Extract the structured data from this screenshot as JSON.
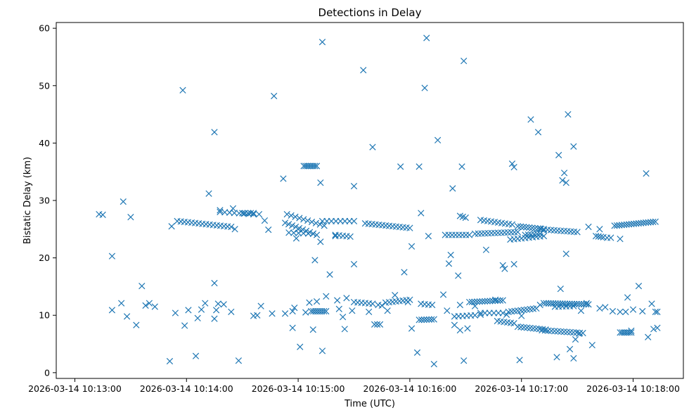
{
  "chart_data": {
    "type": "scatter",
    "title": "Detections in Delay",
    "xlabel": "Time (UTC)",
    "ylabel": "Bistatic Delay (km)",
    "marker": "x",
    "color": "#1f77b4",
    "grid": false,
    "x_unit": "time",
    "xlim": [
      "2026-03-14 10:12:50",
      "2026-03-14 10:18:27"
    ],
    "ylim": [
      -1,
      61
    ],
    "x_ticks": [
      "2026-03-14 10:13:00",
      "2026-03-14 10:14:00",
      "2026-03-14 10:15:00",
      "2026-03-14 10:16:00",
      "2026-03-14 10:17:00",
      "2026-03-14 10:18:00"
    ],
    "y_ticks": [
      0,
      10,
      20,
      30,
      40,
      50,
      60
    ],
    "points": [
      [
        "2026-03-14 10:13:13",
        27.6
      ],
      [
        "2026-03-14 10:13:15",
        27.5
      ],
      [
        "2026-03-14 10:13:20",
        20.3
      ],
      [
        "2026-03-14 10:13:20",
        10.9
      ],
      [
        "2026-03-14 10:13:25",
        12.1
      ],
      [
        "2026-03-14 10:13:26",
        29.8
      ],
      [
        "2026-03-14 10:13:28",
        9.8
      ],
      [
        "2026-03-14 10:13:30",
        27.1
      ],
      [
        "2026-03-14 10:13:33",
        8.3
      ],
      [
        "2026-03-14 10:13:36",
        15.1
      ],
      [
        "2026-03-14 10:13:38",
        11.7
      ],
      [
        "2026-03-14 10:13:40",
        12.1
      ],
      [
        "2026-03-14 10:13:43",
        11.5
      ],
      [
        "2026-03-14 10:13:51",
        2.0
      ],
      [
        "2026-03-14 10:13:52",
        25.5
      ],
      [
        "2026-03-14 10:13:54",
        10.4
      ],
      [
        "2026-03-14 10:13:58",
        49.2
      ],
      [
        "2026-03-14 10:13:59",
        8.2
      ],
      [
        "2026-03-14 10:14:01",
        10.9
      ],
      [
        "2026-03-14 10:14:05",
        2.9
      ],
      [
        "2026-03-14 10:14:06",
        9.5
      ],
      [
        "2026-03-14 10:14:08",
        11.0
      ],
      [
        "2026-03-14 10:14:10",
        12.1
      ],
      [
        "2026-03-14 10:14:12",
        31.2
      ],
      [
        "2026-03-14 10:14:15",
        41.9
      ],
      [
        "2026-03-14 10:14:15",
        15.6
      ],
      [
        "2026-03-14 10:14:15",
        9.4
      ],
      [
        "2026-03-14 10:14:16",
        10.9
      ],
      [
        "2026-03-14 10:14:17",
        12.0
      ],
      [
        "2026-03-14 10:14:18",
        28.3
      ],
      [
        "2026-03-14 10:14:20",
        11.9
      ],
      [
        "2026-03-14 10:14:24",
        10.6
      ],
      [
        "2026-03-14 10:14:25",
        28.6
      ],
      [
        "2026-03-14 10:14:26",
        25.0
      ],
      [
        "2026-03-14 10:14:28",
        2.1
      ],
      [
        "2026-03-14 10:14:36",
        9.9
      ],
      [
        "2026-03-14 10:14:38",
        10.0
      ],
      [
        "2026-03-14 10:14:39",
        27.6
      ],
      [
        "2026-03-14 10:14:40",
        11.6
      ],
      [
        "2026-03-14 10:14:42",
        26.5
      ],
      [
        "2026-03-14 10:14:44",
        24.9
      ],
      [
        "2026-03-14 10:14:46",
        10.3
      ],
      [
        "2026-03-14 10:14:47",
        48.2
      ],
      [
        "2026-03-14 10:14:52",
        33.8
      ],
      [
        "2026-03-14 10:14:53",
        10.3
      ],
      [
        "2026-03-14 10:14:57",
        10.7
      ],
      [
        "2026-03-14 10:14:57",
        7.8
      ],
      [
        "2026-03-14 10:14:58",
        11.3
      ],
      [
        "2026-03-14 10:14:59",
        23.4
      ],
      [
        "2026-03-14 10:15:00",
        25.0
      ],
      [
        "2026-03-14 10:15:01",
        4.5
      ],
      [
        "2026-03-14 10:15:04",
        10.5
      ],
      [
        "2026-03-14 10:15:06",
        12.2
      ],
      [
        "2026-03-14 10:15:08",
        7.5
      ],
      [
        "2026-03-14 10:15:09",
        19.6
      ],
      [
        "2026-03-14 10:15:10",
        12.4
      ],
      [
        "2026-03-14 10:15:12",
        33.1
      ],
      [
        "2026-03-14 10:15:12",
        22.8
      ],
      [
        "2026-03-14 10:15:13",
        3.8
      ],
      [
        "2026-03-14 10:15:13",
        57.6
      ],
      [
        "2026-03-14 10:15:15",
        13.3
      ],
      [
        "2026-03-14 10:15:17",
        17.1
      ],
      [
        "2026-03-14 10:15:20",
        23.8
      ],
      [
        "2026-03-14 10:15:21",
        12.6
      ],
      [
        "2026-03-14 10:15:22",
        11.1
      ],
      [
        "2026-03-14 10:15:24",
        9.7
      ],
      [
        "2026-03-14 10:15:25",
        7.6
      ],
      [
        "2026-03-14 10:15:26",
        13.0
      ],
      [
        "2026-03-14 10:15:29",
        10.8
      ],
      [
        "2026-03-14 10:15:30",
        32.5
      ],
      [
        "2026-03-14 10:15:30",
        18.9
      ],
      [
        "2026-03-14 10:15:35",
        52.7
      ],
      [
        "2026-03-14 10:15:38",
        10.6
      ],
      [
        "2026-03-14 10:15:40",
        39.3
      ],
      [
        "2026-03-14 10:15:43",
        11.8
      ],
      [
        "2026-03-14 10:15:45",
        11.7
      ],
      [
        "2026-03-14 10:15:48",
        10.8
      ],
      [
        "2026-03-14 10:15:52",
        13.5
      ],
      [
        "2026-03-14 10:15:55",
        35.9
      ],
      [
        "2026-03-14 10:15:57",
        17.5
      ],
      [
        "2026-03-14 10:15:59",
        12.3
      ],
      [
        "2026-03-14 10:16:01",
        22.0
      ],
      [
        "2026-03-14 10:16:01",
        7.7
      ],
      [
        "2026-03-14 10:16:04",
        3.5
      ],
      [
        "2026-03-14 10:16:05",
        35.9
      ],
      [
        "2026-03-14 10:16:06",
        27.8
      ],
      [
        "2026-03-14 10:16:08",
        49.6
      ],
      [
        "2026-03-14 10:16:09",
        58.3
      ],
      [
        "2026-03-14 10:16:10",
        23.8
      ],
      [
        "2026-03-14 10:16:13",
        1.5
      ],
      [
        "2026-03-14 10:16:15",
        40.5
      ],
      [
        "2026-03-14 10:16:18",
        13.6
      ],
      [
        "2026-03-14 10:16:20",
        10.8
      ],
      [
        "2026-03-14 10:16:21",
        19.0
      ],
      [
        "2026-03-14 10:16:22",
        20.5
      ],
      [
        "2026-03-14 10:16:23",
        32.1
      ],
      [
        "2026-03-14 10:16:24",
        8.3
      ],
      [
        "2026-03-14 10:16:26",
        16.9
      ],
      [
        "2026-03-14 10:16:27",
        7.4
      ],
      [
        "2026-03-14 10:16:27",
        11.8
      ],
      [
        "2026-03-14 10:16:28",
        35.9
      ],
      [
        "2026-03-14 10:16:29",
        2.1
      ],
      [
        "2026-03-14 10:16:29",
        54.3
      ],
      [
        "2026-03-14 10:16:31",
        7.7
      ],
      [
        "2026-03-14 10:16:35",
        11.6
      ],
      [
        "2026-03-14 10:16:38",
        10.1
      ],
      [
        "2026-03-14 10:16:41",
        21.4
      ],
      [
        "2026-03-14 10:16:46",
        12.7
      ],
      [
        "2026-03-14 10:16:50",
        18.7
      ],
      [
        "2026-03-14 10:16:51",
        18.1
      ],
      [
        "2026-03-14 10:16:52",
        10.1
      ],
      [
        "2026-03-14 10:16:55",
        36.4
      ],
      [
        "2026-03-14 10:16:56",
        35.8
      ],
      [
        "2026-03-14 10:16:56",
        18.9
      ],
      [
        "2026-03-14 10:16:59",
        2.2
      ],
      [
        "2026-03-14 10:17:00",
        9.9
      ],
      [
        "2026-03-14 10:17:05",
        44.1
      ],
      [
        "2026-03-14 10:17:09",
        41.9
      ],
      [
        "2026-03-14 10:17:10",
        11.8
      ],
      [
        "2026-03-14 10:17:10",
        25.1
      ],
      [
        "2026-03-14 10:17:12",
        24.8
      ],
      [
        "2026-03-14 10:17:19",
        2.7
      ],
      [
        "2026-03-14 10:17:20",
        37.9
      ],
      [
        "2026-03-14 10:17:21",
        14.6
      ],
      [
        "2026-03-14 10:17:22",
        33.5
      ],
      [
        "2026-03-14 10:17:23",
        34.8
      ],
      [
        "2026-03-14 10:17:24",
        20.7
      ],
      [
        "2026-03-14 10:17:24",
        33.1
      ],
      [
        "2026-03-14 10:17:25",
        45.0
      ],
      [
        "2026-03-14 10:17:26",
        4.1
      ],
      [
        "2026-03-14 10:17:28",
        39.4
      ],
      [
        "2026-03-14 10:17:28",
        2.5
      ],
      [
        "2026-03-14 10:17:29",
        5.8
      ],
      [
        "2026-03-14 10:17:31",
        6.8
      ],
      [
        "2026-03-14 10:17:32",
        10.8
      ],
      [
        "2026-03-14 10:17:35",
        12.1
      ],
      [
        "2026-03-14 10:17:36",
        25.4
      ],
      [
        "2026-03-14 10:17:38",
        4.8
      ],
      [
        "2026-03-14 10:17:42",
        25.0
      ],
      [
        "2026-03-14 10:17:42",
        11.2
      ],
      [
        "2026-03-14 10:17:45",
        11.4
      ],
      [
        "2026-03-14 10:17:49",
        10.7
      ],
      [
        "2026-03-14 10:17:53",
        10.6
      ],
      [
        "2026-03-14 10:17:53",
        23.3
      ],
      [
        "2026-03-14 10:17:56",
        10.6
      ],
      [
        "2026-03-14 10:17:57",
        13.1
      ],
      [
        "2026-03-14 10:17:59",
        7.3
      ],
      [
        "2026-03-14 10:18:00",
        11.0
      ],
      [
        "2026-03-14 10:18:03",
        15.1
      ],
      [
        "2026-03-14 10:18:05",
        10.7
      ],
      [
        "2026-03-14 10:18:07",
        34.7
      ],
      [
        "2026-03-14 10:18:08",
        6.2
      ],
      [
        "2026-03-14 10:18:10",
        12.0
      ],
      [
        "2026-03-14 10:18:11",
        7.6
      ],
      [
        "2026-03-14 10:18:12",
        10.6
      ],
      [
        "2026-03-14 10:18:13",
        7.8
      ],
      [
        "2026-03-14 10:18:13",
        10.6
      ]
    ],
    "clusters": [
      [
        "2026-03-14 10:13:55",
        "2026-03-14 10:14:24",
        26.4,
        25.4,
        16
      ],
      [
        "2026-03-14 10:14:18",
        "2026-03-14 10:14:36",
        28.0,
        27.6,
        8
      ],
      [
        "2026-03-14 10:14:30",
        "2026-03-14 10:14:36",
        27.8,
        27.8,
        5
      ],
      [
        "2026-03-14 10:14:54",
        "2026-03-14 10:15:14",
        27.6,
        25.6,
        10
      ],
      [
        "2026-03-14 10:14:53",
        "2026-03-14 10:15:10",
        26.1,
        24.0,
        10
      ],
      [
        "2026-03-14 10:14:55",
        "2026-03-14 10:15:08",
        24.4,
        24.2,
        6
      ],
      [
        "2026-03-14 10:15:03",
        "2026-03-14 10:15:10",
        36.0,
        36.0,
        8
      ],
      [
        "2026-03-14 10:15:13",
        "2026-03-14 10:15:30",
        26.4,
        26.4,
        8
      ],
      [
        "2026-03-14 10:15:20",
        "2026-03-14 10:15:28",
        24.0,
        23.7,
        5
      ],
      [
        "2026-03-14 10:15:36",
        "2026-03-14 10:16:00",
        26.0,
        25.2,
        14
      ],
      [
        "2026-03-14 10:15:07",
        "2026-03-14 10:15:15",
        10.7,
        10.7,
        8
      ],
      [
        "2026-03-14 10:15:30",
        "2026-03-14 10:15:40",
        12.3,
        12.0,
        6
      ],
      [
        "2026-03-14 10:15:47",
        "2026-03-14 10:16:00",
        12.2,
        12.7,
        8
      ],
      [
        "2026-03-14 10:15:41",
        "2026-03-14 10:15:44",
        8.4,
        8.4,
        3
      ],
      [
        "2026-03-14 10:16:05",
        "2026-03-14 10:16:13",
        9.2,
        9.3,
        7
      ],
      [
        "2026-03-14 10:16:06",
        "2026-03-14 10:16:12",
        12.0,
        11.8,
        4
      ],
      [
        "2026-03-14 10:16:19",
        "2026-03-14 10:16:32",
        24.0,
        24.0,
        8
      ],
      [
        "2026-03-14 10:16:27",
        "2026-03-14 10:16:30",
        27.3,
        27.0,
        3
      ],
      [
        "2026-03-14 10:16:24",
        "2026-03-14 10:16:35",
        9.8,
        10.0,
        6
      ],
      [
        "2026-03-14 10:16:32",
        "2026-03-14 10:16:50",
        12.3,
        12.6,
        14
      ],
      [
        "2026-03-14 10:16:35",
        "2026-03-14 10:16:58",
        24.2,
        24.5,
        14
      ],
      [
        "2026-03-14 10:16:38",
        "2026-03-14 10:16:55",
        26.6,
        25.8,
        10
      ],
      [
        "2026-03-14 10:16:38",
        "2026-03-14 10:16:50",
        10.4,
        10.4,
        6
      ],
      [
        "2026-03-14 10:16:47",
        "2026-03-14 10:16:56",
        9.0,
        8.6,
        6
      ],
      [
        "2026-03-14 10:16:53",
        "2026-03-14 10:17:08",
        10.6,
        11.2,
        10
      ],
      [
        "2026-03-14 10:16:54",
        "2026-03-14 10:17:12",
        23.2,
        23.8,
        10
      ],
      [
        "2026-03-14 10:16:58",
        "2026-03-14 10:17:12",
        25.5,
        25.0,
        10
      ],
      [
        "2026-03-14 10:16:58",
        "2026-03-14 10:17:13",
        8.0,
        7.5,
        10
      ],
      [
        "2026-03-14 10:17:02",
        "2026-03-14 10:17:10",
        24.0,
        24.2,
        6
      ],
      [
        "2026-03-14 10:17:11",
        "2026-03-14 10:17:33",
        7.4,
        6.9,
        14
      ],
      [
        "2026-03-14 10:17:12",
        "2026-03-14 10:17:36",
        12.1,
        11.9,
        20
      ],
      [
        "2026-03-14 10:17:14",
        "2026-03-14 10:17:30",
        24.9,
        24.5,
        10
      ],
      [
        "2026-03-14 10:17:18",
        "2026-03-14 10:17:28",
        11.5,
        11.6,
        6
      ],
      [
        "2026-03-14 10:17:40",
        "2026-03-14 10:17:44",
        23.8,
        23.6,
        4
      ],
      [
        "2026-03-14 10:17:50",
        "2026-03-14 10:18:12",
        25.6,
        26.3,
        18
      ],
      [
        "2026-03-14 10:17:53",
        "2026-03-14 10:17:59",
        7.0,
        7.0,
        7
      ],
      [
        "2026-03-14 10:17:46",
        "2026-03-14 10:17:48",
        23.5,
        23.5,
        2
      ]
    ]
  }
}
